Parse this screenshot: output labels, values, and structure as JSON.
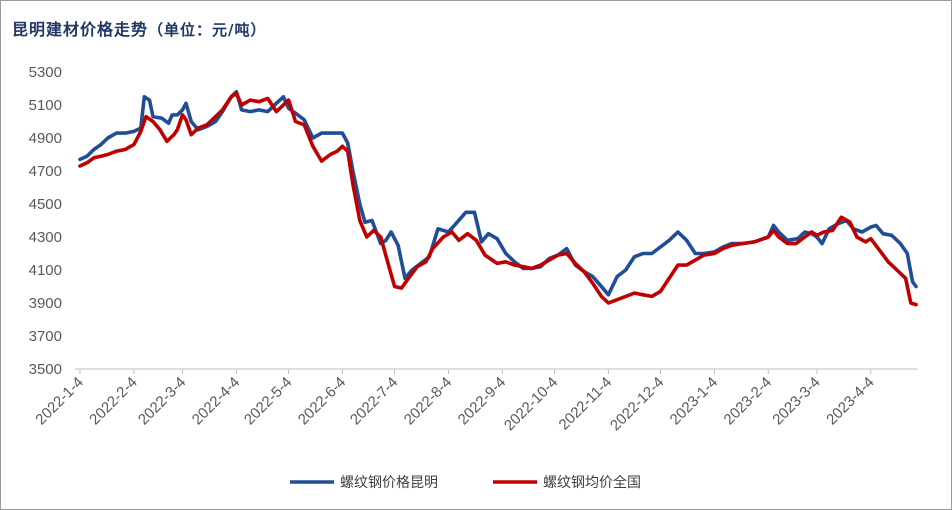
{
  "title": "昆明建材价格走势",
  "unit": "（单位：元/吨）",
  "chart_data": {
    "type": "line",
    "ylim": [
      3500,
      5300
    ],
    "yticks": [
      5300,
      5100,
      4900,
      4700,
      4500,
      4300,
      4100,
      3900,
      3700,
      3500
    ],
    "x_tick_labels": [
      "2022-1-4",
      "2022-2-4",
      "2022-3-4",
      "2022-4-4",
      "2022-5-4",
      "2022-6-4",
      "2022-7-4",
      "2022-8-4",
      "2022-9-4",
      "2022-10-4",
      "2022-11-4",
      "2022-12-4",
      "2023-1-4",
      "2023-2-4",
      "2023-3-4",
      "2023-4-4"
    ],
    "grid": false,
    "legend_position": "bottom",
    "series": [
      {
        "name": "螺纹钢价格昆明",
        "color": "#1f4e96",
        "points": [
          [
            "2022-01-04",
            4770
          ],
          [
            "2022-01-08",
            4790
          ],
          [
            "2022-01-12",
            4830
          ],
          [
            "2022-01-16",
            4860
          ],
          [
            "2022-01-20",
            4900
          ],
          [
            "2022-01-25",
            4930
          ],
          [
            "2022-01-30",
            4930
          ],
          [
            "2022-02-04",
            4940
          ],
          [
            "2022-02-08",
            4960
          ],
          [
            "2022-02-10",
            5150
          ],
          [
            "2022-02-13",
            5130
          ],
          [
            "2022-02-15",
            5030
          ],
          [
            "2022-02-20",
            5020
          ],
          [
            "2022-02-24",
            4990
          ],
          [
            "2022-02-26",
            5040
          ],
          [
            "2022-03-01",
            5040
          ],
          [
            "2022-03-04",
            5070
          ],
          [
            "2022-03-06",
            5110
          ],
          [
            "2022-03-09",
            5000
          ],
          [
            "2022-03-13",
            4950
          ],
          [
            "2022-03-18",
            4970
          ],
          [
            "2022-03-23",
            5000
          ],
          [
            "2022-03-27",
            5060
          ],
          [
            "2022-04-01",
            5150
          ],
          [
            "2022-04-04",
            5180
          ],
          [
            "2022-04-07",
            5070
          ],
          [
            "2022-04-12",
            5060
          ],
          [
            "2022-04-17",
            5070
          ],
          [
            "2022-04-22",
            5060
          ],
          [
            "2022-04-27",
            5110
          ],
          [
            "2022-05-01",
            5150
          ],
          [
            "2022-05-04",
            5080
          ],
          [
            "2022-05-08",
            5050
          ],
          [
            "2022-05-13",
            5010
          ],
          [
            "2022-05-18",
            4900
          ],
          [
            "2022-05-23",
            4930
          ],
          [
            "2022-06-01",
            4930
          ],
          [
            "2022-06-04",
            4930
          ],
          [
            "2022-06-07",
            4870
          ],
          [
            "2022-06-10",
            4700
          ],
          [
            "2022-06-14",
            4500
          ],
          [
            "2022-06-17",
            4390
          ],
          [
            "2022-06-21",
            4400
          ],
          [
            "2022-06-26",
            4260
          ],
          [
            "2022-06-29",
            4280
          ],
          [
            "2022-07-02",
            4330
          ],
          [
            "2022-07-06",
            4250
          ],
          [
            "2022-07-10",
            4050
          ],
          [
            "2022-07-14",
            4100
          ],
          [
            "2022-07-19",
            4140
          ],
          [
            "2022-07-24",
            4180
          ],
          [
            "2022-07-29",
            4350
          ],
          [
            "2022-08-04",
            4330
          ],
          [
            "2022-08-09",
            4390
          ],
          [
            "2022-08-14",
            4450
          ],
          [
            "2022-08-19",
            4450
          ],
          [
            "2022-08-23",
            4270
          ],
          [
            "2022-08-27",
            4320
          ],
          [
            "2022-09-01",
            4290
          ],
          [
            "2022-09-06",
            4200
          ],
          [
            "2022-09-11",
            4150
          ],
          [
            "2022-09-16",
            4110
          ],
          [
            "2022-09-21",
            4110
          ],
          [
            "2022-09-26",
            4120
          ],
          [
            "2022-10-01",
            4170
          ],
          [
            "2022-10-06",
            4190
          ],
          [
            "2022-10-11",
            4230
          ],
          [
            "2022-10-16",
            4130
          ],
          [
            "2022-10-21",
            4090
          ],
          [
            "2022-10-26",
            4060
          ],
          [
            "2022-10-31",
            4000
          ],
          [
            "2022-11-04",
            3950
          ],
          [
            "2022-11-09",
            4060
          ],
          [
            "2022-11-14",
            4100
          ],
          [
            "2022-11-19",
            4180
          ],
          [
            "2022-11-24",
            4200
          ],
          [
            "2022-11-29",
            4200
          ],
          [
            "2022-12-04",
            4240
          ],
          [
            "2022-12-09",
            4280
          ],
          [
            "2022-12-14",
            4330
          ],
          [
            "2022-12-19",
            4280
          ],
          [
            "2022-12-24",
            4200
          ],
          [
            "2022-12-29",
            4200
          ],
          [
            "2023-01-04",
            4210
          ],
          [
            "2023-01-09",
            4240
          ],
          [
            "2023-01-14",
            4260
          ],
          [
            "2023-01-20",
            4260
          ],
          [
            "2023-01-27",
            4270
          ],
          [
            "2023-02-04",
            4300
          ],
          [
            "2023-02-07",
            4370
          ],
          [
            "2023-02-10",
            4330
          ],
          [
            "2023-02-15",
            4280
          ],
          [
            "2023-02-21",
            4290
          ],
          [
            "2023-02-25",
            4330
          ],
          [
            "2023-03-01",
            4320
          ],
          [
            "2023-03-04",
            4300
          ],
          [
            "2023-03-07",
            4260
          ],
          [
            "2023-03-11",
            4350
          ],
          [
            "2023-03-16",
            4380
          ],
          [
            "2023-03-21",
            4400
          ],
          [
            "2023-03-25",
            4350
          ],
          [
            "2023-03-30",
            4330
          ],
          [
            "2023-04-04",
            4360
          ],
          [
            "2023-04-07",
            4370
          ],
          [
            "2023-04-11",
            4320
          ],
          [
            "2023-04-16",
            4310
          ],
          [
            "2023-04-21",
            4260
          ],
          [
            "2023-04-25",
            4200
          ],
          [
            "2023-04-28",
            4030
          ],
          [
            "2023-04-30",
            4000
          ]
        ]
      },
      {
        "name": "螺纹钢均价全国",
        "color": "#c00000",
        "points": [
          [
            "2022-01-04",
            4730
          ],
          [
            "2022-01-08",
            4750
          ],
          [
            "2022-01-12",
            4780
          ],
          [
            "2022-01-16",
            4790
          ],
          [
            "2022-01-20",
            4800
          ],
          [
            "2022-01-25",
            4820
          ],
          [
            "2022-01-30",
            4830
          ],
          [
            "2022-02-04",
            4860
          ],
          [
            "2022-02-08",
            4940
          ],
          [
            "2022-02-11",
            5030
          ],
          [
            "2022-02-15",
            5000
          ],
          [
            "2022-02-19",
            4950
          ],
          [
            "2022-02-23",
            4880
          ],
          [
            "2022-02-27",
            4920
          ],
          [
            "2022-03-01",
            4950
          ],
          [
            "2022-03-04",
            5040
          ],
          [
            "2022-03-06",
            5010
          ],
          [
            "2022-03-09",
            4920
          ],
          [
            "2022-03-13",
            4960
          ],
          [
            "2022-03-18",
            4980
          ],
          [
            "2022-03-23",
            5030
          ],
          [
            "2022-03-27",
            5070
          ],
          [
            "2022-04-01",
            5150
          ],
          [
            "2022-04-04",
            5170
          ],
          [
            "2022-04-07",
            5100
          ],
          [
            "2022-04-12",
            5130
          ],
          [
            "2022-04-17",
            5120
          ],
          [
            "2022-04-22",
            5140
          ],
          [
            "2022-04-27",
            5060
          ],
          [
            "2022-05-01",
            5100
          ],
          [
            "2022-05-04",
            5130
          ],
          [
            "2022-05-08",
            5000
          ],
          [
            "2022-05-13",
            4980
          ],
          [
            "2022-05-18",
            4850
          ],
          [
            "2022-05-23",
            4760
          ],
          [
            "2022-05-28",
            4800
          ],
          [
            "2022-06-01",
            4820
          ],
          [
            "2022-06-04",
            4850
          ],
          [
            "2022-06-07",
            4820
          ],
          [
            "2022-06-10",
            4620
          ],
          [
            "2022-06-14",
            4400
          ],
          [
            "2022-06-18",
            4300
          ],
          [
            "2022-06-22",
            4340
          ],
          [
            "2022-06-26",
            4300
          ],
          [
            "2022-06-30",
            4150
          ],
          [
            "2022-07-04",
            4000
          ],
          [
            "2022-07-08",
            3990
          ],
          [
            "2022-07-12",
            4050
          ],
          [
            "2022-07-17",
            4120
          ],
          [
            "2022-07-22",
            4150
          ],
          [
            "2022-07-26",
            4230
          ],
          [
            "2022-08-01",
            4300
          ],
          [
            "2022-08-06",
            4330
          ],
          [
            "2022-08-10",
            4280
          ],
          [
            "2022-08-15",
            4320
          ],
          [
            "2022-08-20",
            4280
          ],
          [
            "2022-08-25",
            4190
          ],
          [
            "2022-09-01",
            4140
          ],
          [
            "2022-09-06",
            4150
          ],
          [
            "2022-09-11",
            4130
          ],
          [
            "2022-09-16",
            4120
          ],
          [
            "2022-09-21",
            4110
          ],
          [
            "2022-09-26",
            4130
          ],
          [
            "2022-10-01",
            4160
          ],
          [
            "2022-10-06",
            4190
          ],
          [
            "2022-10-11",
            4200
          ],
          [
            "2022-10-16",
            4140
          ],
          [
            "2022-10-21",
            4090
          ],
          [
            "2022-10-26",
            4020
          ],
          [
            "2022-10-31",
            3940
          ],
          [
            "2022-11-04",
            3900
          ],
          [
            "2022-11-09",
            3920
          ],
          [
            "2022-11-14",
            3940
          ],
          [
            "2022-11-19",
            3960
          ],
          [
            "2022-11-24",
            3950
          ],
          [
            "2022-11-29",
            3940
          ],
          [
            "2022-12-04",
            3970
          ],
          [
            "2022-12-09",
            4050
          ],
          [
            "2022-12-14",
            4130
          ],
          [
            "2022-12-19",
            4130
          ],
          [
            "2022-12-24",
            4160
          ],
          [
            "2022-12-29",
            4190
          ],
          [
            "2023-01-04",
            4200
          ],
          [
            "2023-01-09",
            4230
          ],
          [
            "2023-01-14",
            4250
          ],
          [
            "2023-01-20",
            4260
          ],
          [
            "2023-01-27",
            4270
          ],
          [
            "2023-02-04",
            4300
          ],
          [
            "2023-02-07",
            4340
          ],
          [
            "2023-02-10",
            4300
          ],
          [
            "2023-02-15",
            4260
          ],
          [
            "2023-02-20",
            4260
          ],
          [
            "2023-02-25",
            4300
          ],
          [
            "2023-03-01",
            4330
          ],
          [
            "2023-03-04",
            4310
          ],
          [
            "2023-03-08",
            4330
          ],
          [
            "2023-03-13",
            4340
          ],
          [
            "2023-03-18",
            4420
          ],
          [
            "2023-03-23",
            4390
          ],
          [
            "2023-03-27",
            4300
          ],
          [
            "2023-04-01",
            4270
          ],
          [
            "2023-04-04",
            4290
          ],
          [
            "2023-04-09",
            4220
          ],
          [
            "2023-04-14",
            4150
          ],
          [
            "2023-04-19",
            4100
          ],
          [
            "2023-04-24",
            4050
          ],
          [
            "2023-04-27",
            3900
          ],
          [
            "2023-04-30",
            3890
          ]
        ]
      }
    ]
  }
}
